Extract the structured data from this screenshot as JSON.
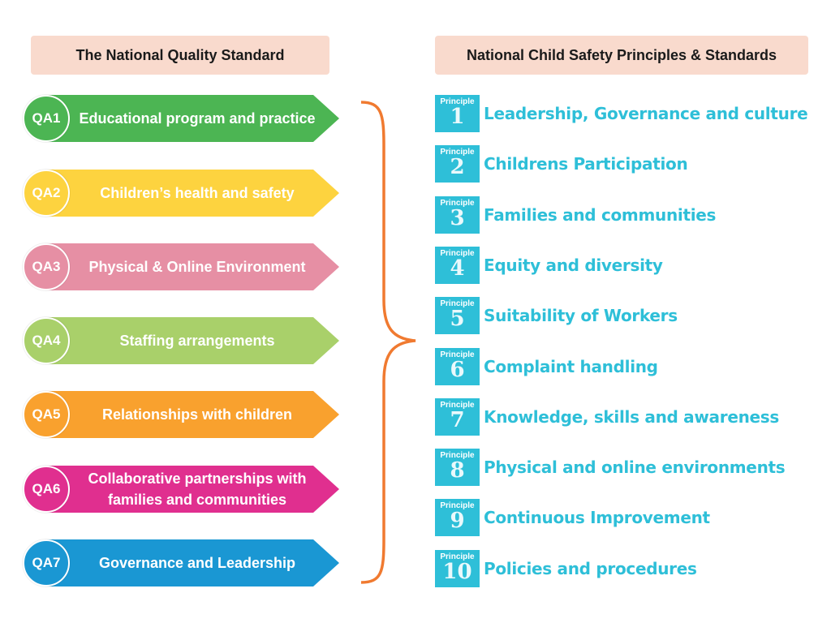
{
  "left_header": "The National Quality Standard",
  "right_header": "National Child Safety Principles & Standards",
  "quality_areas": [
    {
      "code": "QA1",
      "label": "Educational program and practice",
      "color": "#4cb553"
    },
    {
      "code": "QA2",
      "label": "Children’s health and safety",
      "color": "#fdd33f"
    },
    {
      "code": "QA3",
      "label": "Physical & Online Environment",
      "color": "#e68fa4"
    },
    {
      "code": "QA4",
      "label": "Staffing arrangements",
      "color": "#a9d06a"
    },
    {
      "code": "QA5",
      "label": "Relationships with children",
      "color": "#f9a12e"
    },
    {
      "code": "QA6",
      "label": "Collaborative partnerships with families and communities",
      "color": "#e02f8f"
    },
    {
      "code": "QA7",
      "label": "Governance and Leadership",
      "color": "#1a97d3"
    }
  ],
  "principle_word": "Principle",
  "principles": [
    {
      "num": "1",
      "label": "Leadership, Governance and culture"
    },
    {
      "num": "2",
      "label": "Childrens Participation"
    },
    {
      "num": "3",
      "label": "Families and communities"
    },
    {
      "num": "4",
      "label": "Equity and diversity"
    },
    {
      "num": "5",
      "label": "Suitability of Workers"
    },
    {
      "num": "6",
      "label": "Complaint handling"
    },
    {
      "num": "7",
      "label": "Knowledge, skills and awareness"
    },
    {
      "num": "8",
      "label": "Physical and online environments"
    },
    {
      "num": "9",
      "label": "Continuous Improvement"
    },
    {
      "num": "10",
      "label": "Policies and procedures"
    }
  ],
  "colors": {
    "principle": "#2ebfd8",
    "brace": "#f07a30",
    "header_bg": "#f9dacd"
  }
}
